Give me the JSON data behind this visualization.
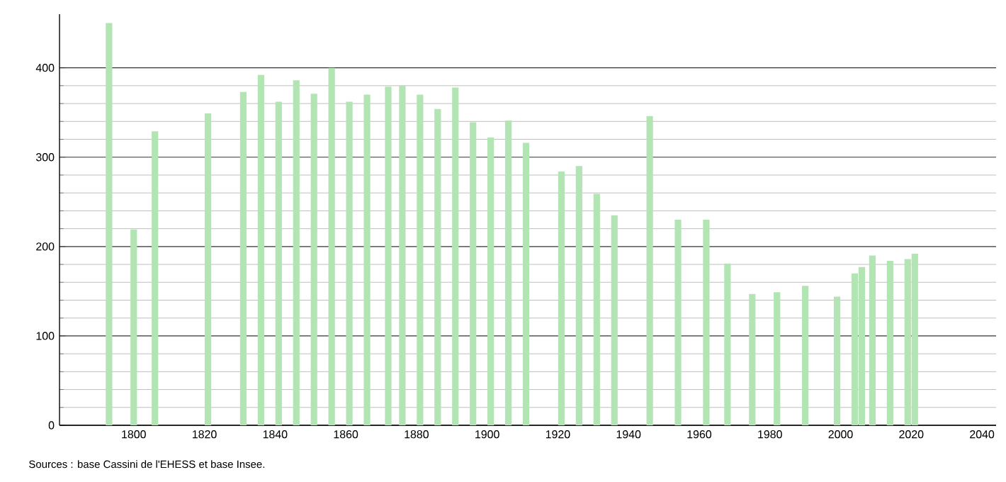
{
  "chart_data": {
    "type": "bar",
    "color": "#b3e4b3",
    "x": [
      1793,
      1800,
      1806,
      1821,
      1831,
      1836,
      1841,
      1846,
      1851,
      1856,
      1861,
      1866,
      1872,
      1876,
      1881,
      1886,
      1891,
      1896,
      1901,
      1906,
      1911,
      1921,
      1926,
      1931,
      1936,
      1946,
      1954,
      1962,
      1968,
      1975,
      1982,
      1990,
      1999,
      2004,
      2006,
      2009,
      2014,
      2019,
      2021
    ],
    "values": [
      450,
      219,
      329,
      349,
      373,
      392,
      362,
      386,
      371,
      400,
      362,
      370,
      379,
      380,
      370,
      354,
      378,
      339,
      322,
      341,
      316,
      284,
      290,
      259,
      235,
      346,
      230,
      230,
      181,
      147,
      149,
      156,
      144,
      170,
      177,
      190,
      184,
      186,
      192
    ],
    "xlim": [
      1779,
      2044
    ],
    "xticks": [
      1800,
      1820,
      1840,
      1860,
      1880,
      1900,
      1920,
      1940,
      1960,
      1980,
      2000,
      2020,
      2040
    ],
    "ylim": [
      0,
      460
    ],
    "yticks": [
      0,
      100,
      200,
      300,
      400
    ],
    "grid": "y",
    "annotations": [
      "Sources : base Cassini de l'EHESS et base Insee."
    ]
  }
}
